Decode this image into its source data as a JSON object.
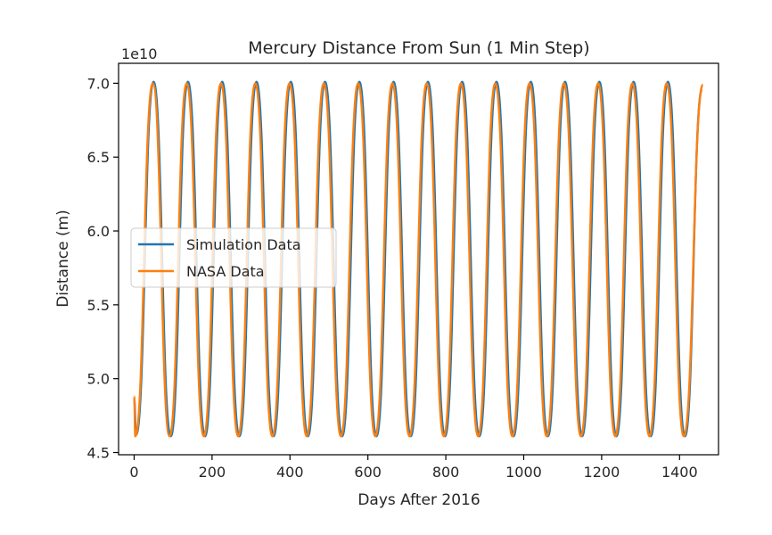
{
  "chart_data": {
    "type": "line",
    "title": "Mercury Distance From Sun (1 Min Step)",
    "xlabel": "Days After 2016",
    "ylabel": "Distance (m)",
    "y_offset_text": "1e10",
    "xlim": [
      -40,
      1500
    ],
    "ylim": [
      4.485,
      7.135
    ],
    "x_ticks": [
      0,
      200,
      400,
      600,
      800,
      1000,
      1200,
      1400
    ],
    "x_tick_labels": [
      "0",
      "200",
      "400",
      "600",
      "800",
      "1000",
      "1200",
      "1400"
    ],
    "y_ticks": [
      4.5,
      5.0,
      5.5,
      6.0,
      6.5,
      7.0
    ],
    "y_tick_labels": [
      "4.5",
      "5.0",
      "5.5",
      "6.0",
      "6.5",
      "7.0"
    ],
    "y_unit_scale": 10000000000.0,
    "grid": false,
    "legend_position": "center-left",
    "series": [
      {
        "name": "Simulation Data",
        "color": "#1f77b4",
        "x": [
          0,
          5,
          50,
          94,
          138,
          182,
          226,
          270,
          314,
          358,
          402,
          446,
          490,
          534,
          578,
          622,
          666,
          710,
          754,
          798,
          842,
          886,
          930,
          974,
          1018,
          1062,
          1106,
          1150,
          1194,
          1238,
          1282,
          1326,
          1370,
          1414,
          1458
        ],
        "values": [
          4.86,
          4.62,
          7.01,
          4.61,
          7.01,
          4.61,
          7.01,
          4.61,
          7.01,
          4.61,
          7.01,
          4.61,
          7.01,
          4.61,
          7.01,
          4.61,
          7.01,
          4.61,
          7.01,
          4.61,
          7.01,
          4.61,
          7.01,
          4.61,
          7.01,
          4.61,
          7.01,
          4.61,
          7.01,
          4.61,
          7.01,
          4.61,
          7.01,
          4.61,
          6.96
        ]
      },
      {
        "name": "NASA Data",
        "color": "#ff7f0e",
        "x": [
          0,
          3,
          48,
          91,
          135,
          179,
          223,
          267,
          311,
          355,
          399,
          443,
          487,
          531,
          575,
          619,
          663,
          707,
          751,
          795,
          839,
          883,
          927,
          971,
          1015,
          1059,
          1103,
          1147,
          1191,
          1235,
          1279,
          1323,
          1367,
          1411,
          1460
        ],
        "values": [
          4.88,
          4.61,
          7.0,
          4.61,
          7.0,
          4.61,
          7.0,
          4.61,
          7.0,
          4.61,
          7.0,
          4.61,
          7.0,
          4.61,
          7.0,
          4.61,
          7.0,
          4.61,
          7.0,
          4.61,
          7.0,
          4.61,
          7.0,
          4.61,
          7.0,
          4.61,
          7.0,
          4.61,
          7.0,
          4.61,
          7.0,
          4.61,
          7.0,
          4.61,
          6.99
        ]
      }
    ]
  }
}
